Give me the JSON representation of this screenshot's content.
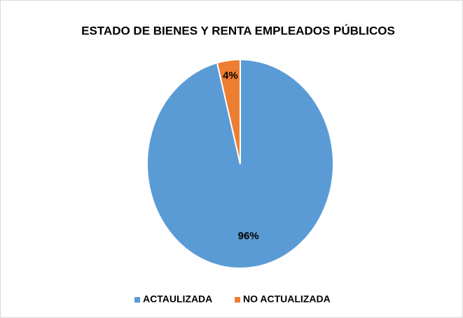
{
  "chart_data": {
    "type": "pie",
    "title": "ESTADO DE BIENES Y RENTA EMPLEADOS PÚBLICOS",
    "categories": [
      "ACTAULIZADA",
      "NO ACTUALIZADA"
    ],
    "values": [
      96,
      4
    ],
    "value_labels": [
      "96%",
      "4%"
    ],
    "colors": [
      "#5b9bd5",
      "#ed7d31"
    ],
    "legend": "bottom"
  }
}
